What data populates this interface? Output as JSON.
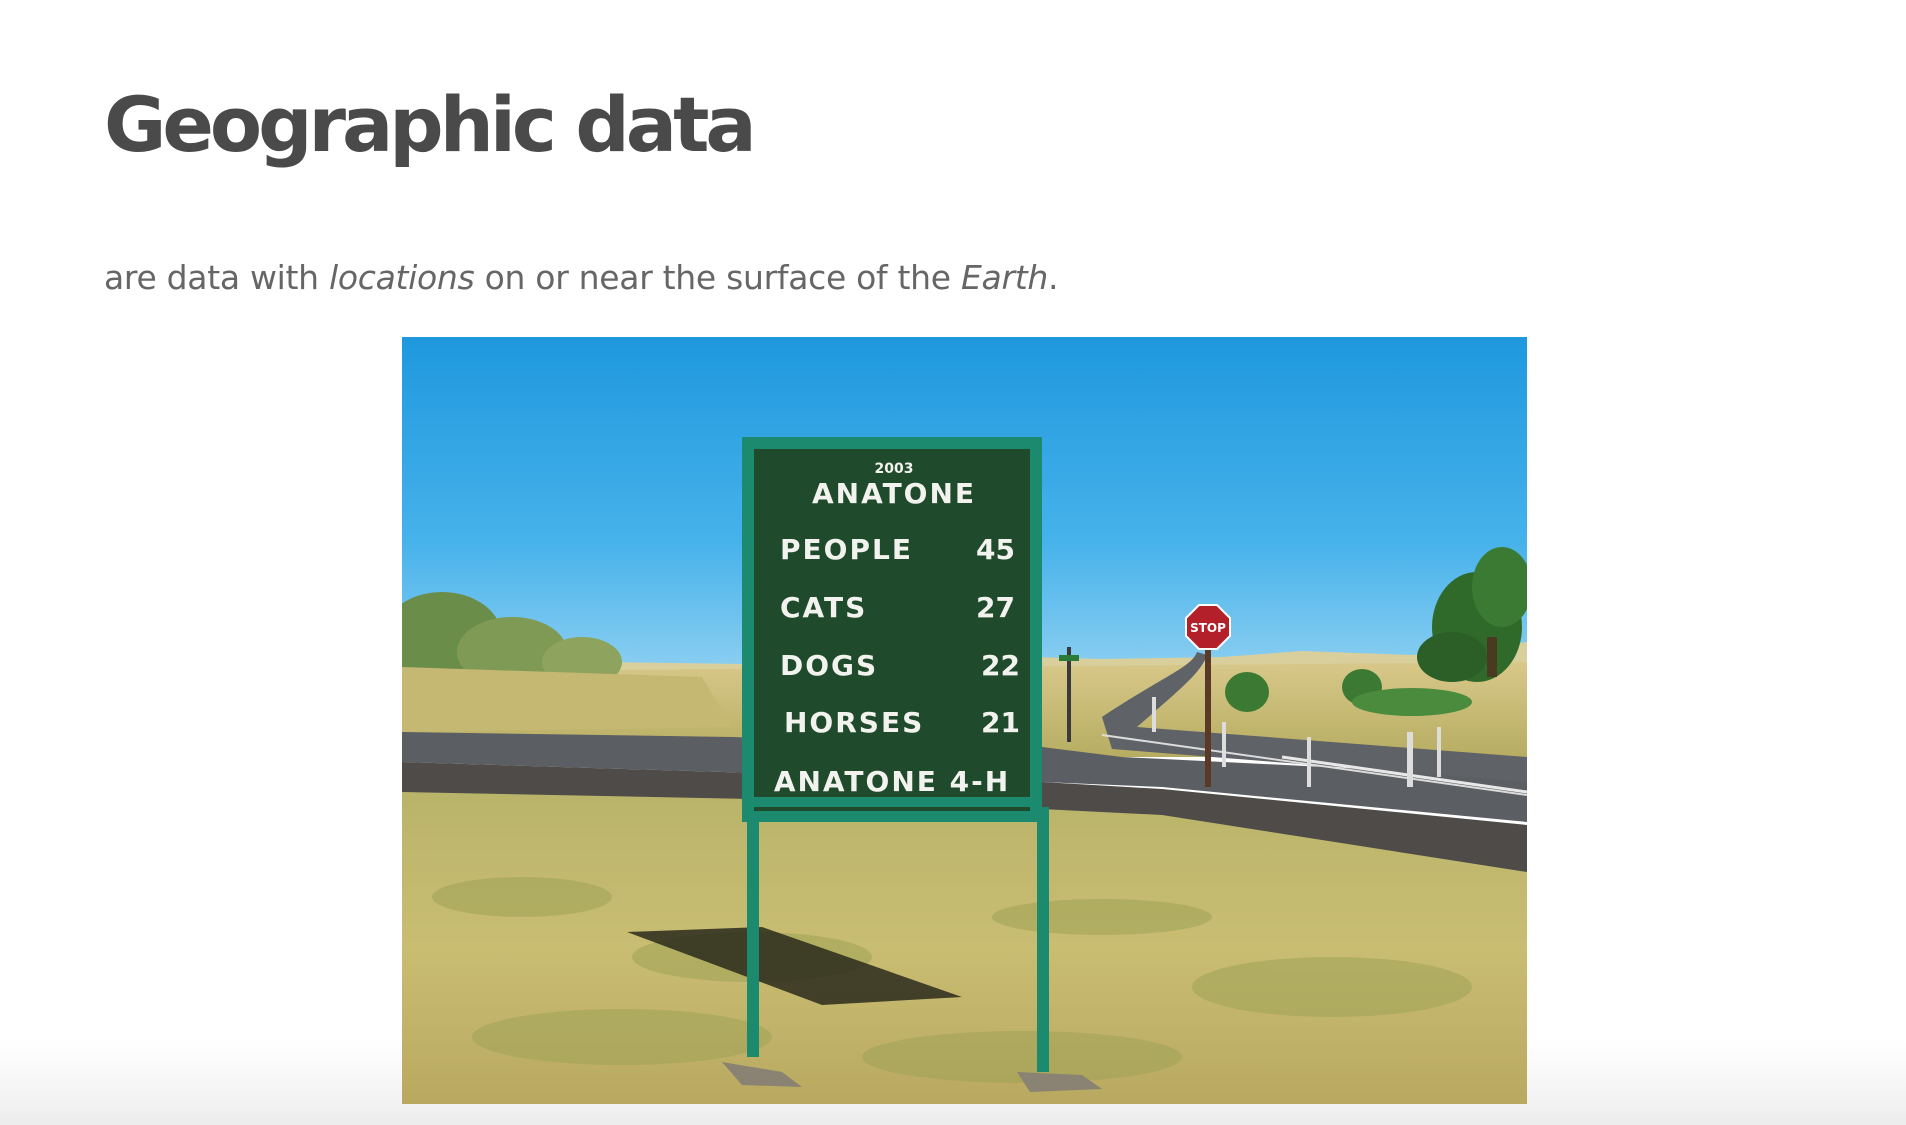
{
  "heading": {
    "title": "Geographic data"
  },
  "intro": {
    "part1": "are data with ",
    "em1": "locations",
    "part2": " on or near the surface of the ",
    "em2": "Earth",
    "part3": "."
  },
  "photo": {
    "sign": {
      "year": "2003",
      "town": "ANATONE",
      "rows": [
        {
          "label": "PEOPLE",
          "value": "45"
        },
        {
          "label": "CATS",
          "value": "27"
        },
        {
          "label": "DOGS",
          "value": "22"
        },
        {
          "label": "HORSES",
          "value": "21"
        }
      ],
      "footer": "ANATONE 4-H"
    },
    "stop_sign": "STOP",
    "colors": {
      "sky": "#2fa3e0",
      "sign_board": "#1f4a2c",
      "sign_frame": "#1b8a6e",
      "grass": "#c8bb6a",
      "road": "#5d6065"
    }
  }
}
